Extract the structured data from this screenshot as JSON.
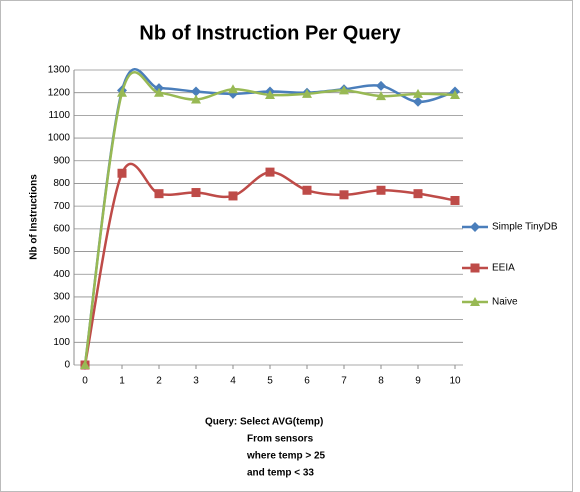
{
  "chart_data": {
    "type": "line",
    "title": "Nb of Instruction Per Query",
    "ylabel": "Nb of Instructions",
    "xlabel": [
      "Query: Select AVG(temp)",
      "From sensors",
      "where temp > 25",
      "and temp < 33"
    ],
    "x": [
      0,
      1,
      2,
      3,
      4,
      5,
      6,
      7,
      8,
      9,
      10
    ],
    "xlim": [
      0,
      10
    ],
    "xticks": [
      0,
      1,
      2,
      3,
      4,
      5,
      6,
      7,
      8,
      9,
      10
    ],
    "ylim": [
      0,
      1300
    ],
    "yticks": [
      0,
      100,
      200,
      300,
      400,
      500,
      600,
      700,
      800,
      900,
      1000,
      1100,
      1200,
      1300
    ],
    "grid": true,
    "legend": "right",
    "smooth": true,
    "series": [
      {
        "name": "Simple TinyDB",
        "color": "#4a7ebb",
        "marker": "diamond",
        "values": [
          0,
          1210,
          1220,
          1205,
          1195,
          1205,
          1200,
          1215,
          1230,
          1160,
          1205
        ]
      },
      {
        "name": "EEIA",
        "color": "#be4b48",
        "marker": "square",
        "values": [
          0,
          845,
          755,
          760,
          745,
          850,
          770,
          750,
          770,
          755,
          725
        ]
      },
      {
        "name": "Naive",
        "color": "#98b954",
        "marker": "triangle",
        "values": [
          0,
          1200,
          1200,
          1170,
          1215,
          1190,
          1195,
          1210,
          1185,
          1195,
          1190
        ]
      }
    ]
  }
}
